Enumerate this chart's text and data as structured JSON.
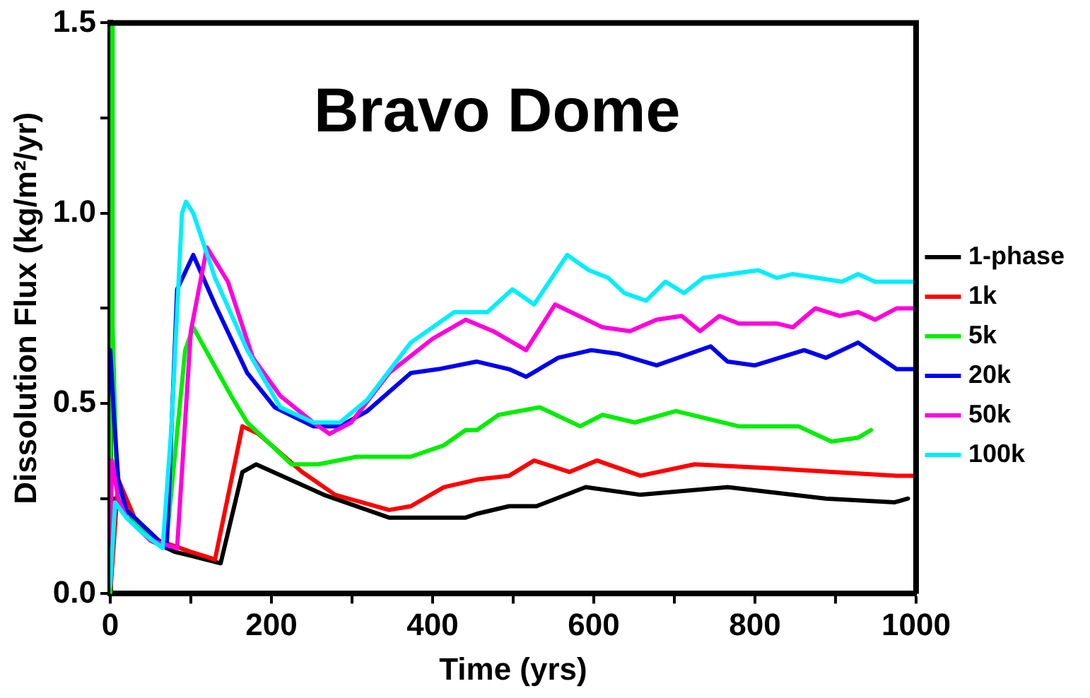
{
  "chart_data": {
    "type": "line",
    "title": "Bravo Dome",
    "xlabel": "Time (yrs)",
    "ylabel": "Dissolution Flux (kg/m²/yr)",
    "xlim": [
      0,
      1000
    ],
    "ylim": [
      0,
      1.5
    ],
    "xticks": [
      0,
      {
        "value": 100,
        "label": null
      },
      200,
      {
        "value": 300,
        "label": null
      },
      400,
      {
        "value": 500,
        "label": null
      },
      600,
      {
        "value": 700,
        "label": null
      },
      800,
      {
        "value": 900,
        "label": null
      },
      1000
    ],
    "yticks": [
      {
        "value": 0,
        "label": "0.0"
      },
      {
        "value": 0.25,
        "label": null
      },
      0.5,
      {
        "value": 0.75,
        "label": null
      },
      {
        "value": 1,
        "label": "1.0"
      },
      {
        "value": 1.25,
        "label": null
      },
      1.5
    ],
    "legend": "right",
    "grid": false,
    "marker": "none",
    "line_style": "solid",
    "series": [
      {
        "name": "1-phase",
        "color": "#000000",
        "x": [
          0,
          5,
          20,
          50,
          80,
          100,
          137,
          164,
          181,
          265,
          346,
          441,
          455,
          495,
          529,
          590,
          658,
          766,
          888,
          973,
          990
        ],
        "values": [
          0.0,
          0.25,
          0.22,
          0.14,
          0.11,
          0.1,
          0.08,
          0.32,
          0.34,
          0.26,
          0.2,
          0.2,
          0.21,
          0.23,
          0.23,
          0.28,
          0.26,
          0.28,
          0.25,
          0.24,
          0.25
        ]
      },
      {
        "name": "1k",
        "color": "#ff0000",
        "x": [
          0,
          10,
          30,
          60,
          100,
          130,
          164,
          184,
          238,
          279,
          346,
          373,
          414,
          455,
          495,
          526,
          570,
          604,
          658,
          725,
          820,
          895,
          976,
          1000
        ],
        "values": [
          0.0,
          0.3,
          0.2,
          0.14,
          0.11,
          0.09,
          0.44,
          0.42,
          0.32,
          0.26,
          0.22,
          0.23,
          0.28,
          0.3,
          0.31,
          0.35,
          0.32,
          0.35,
          0.31,
          0.34,
          0.33,
          0.32,
          0.31,
          0.31
        ]
      },
      {
        "name": "5k",
        "color": "#00ee00",
        "x": [
          0,
          2,
          3,
          8,
          20,
          40,
          69,
          93,
          103,
          150,
          170,
          225,
          258,
          306,
          373,
          414,
          441,
          455,
          482,
          533,
          583,
          611,
          651,
          702,
          780,
          854,
          895,
          928,
          944
        ],
        "values": [
          0.0,
          1.5,
          0.7,
          0.3,
          0.22,
          0.17,
          0.12,
          0.64,
          0.7,
          0.52,
          0.45,
          0.34,
          0.34,
          0.36,
          0.36,
          0.39,
          0.43,
          0.43,
          0.47,
          0.49,
          0.44,
          0.47,
          0.45,
          0.48,
          0.44,
          0.44,
          0.4,
          0.41,
          0.43
        ]
      },
      {
        "name": "20k",
        "color": "#0000ee",
        "x": [
          0,
          5,
          10,
          20,
          70,
          83,
          103,
          130,
          170,
          204,
          252,
          285,
          319,
          373,
          407,
          455,
          495,
          516,
          556,
          597,
          631,
          678,
          745,
          766,
          800,
          861,
          888,
          928,
          976,
          1000
        ],
        "values": [
          0.64,
          0.45,
          0.3,
          0.22,
          0.12,
          0.8,
          0.89,
          0.76,
          0.58,
          0.49,
          0.44,
          0.44,
          0.48,
          0.58,
          0.59,
          0.61,
          0.59,
          0.57,
          0.62,
          0.64,
          0.63,
          0.6,
          0.65,
          0.61,
          0.6,
          0.64,
          0.62,
          0.66,
          0.59,
          0.59
        ]
      },
      {
        "name": "50k",
        "color": "#ff00dd",
        "x": [
          0,
          2,
          10,
          20,
          50,
          83,
          100,
          120,
          146,
          177,
          211,
          252,
          272,
          299,
          346,
          400,
          441,
          475,
          516,
          552,
          611,
          645,
          678,
          709,
          732,
          756,
          780,
          827,
          847,
          875,
          905,
          928,
          949,
          976,
          1000
        ],
        "values": [
          0.1,
          0.35,
          0.25,
          0.2,
          0.14,
          0.12,
          0.69,
          0.91,
          0.82,
          0.62,
          0.52,
          0.45,
          0.42,
          0.45,
          0.58,
          0.67,
          0.72,
          0.69,
          0.64,
          0.76,
          0.7,
          0.69,
          0.72,
          0.73,
          0.69,
          0.73,
          0.71,
          0.71,
          0.7,
          0.75,
          0.73,
          0.74,
          0.72,
          0.75,
          0.75
        ]
      },
      {
        "name": "100k",
        "color": "#00eeff",
        "x": [
          0,
          6,
          20,
          40,
          65,
          76,
          89,
          94,
          103,
          130,
          170,
          211,
          252,
          285,
          319,
          373,
          427,
          468,
          499,
          526,
          567,
          594,
          618,
          638,
          665,
          689,
          712,
          736,
          804,
          827,
          847,
          908,
          928,
          949,
          976,
          1000
        ],
        "values": [
          0.02,
          0.24,
          0.2,
          0.16,
          0.12,
          0.44,
          1.0,
          1.03,
          1.0,
          0.83,
          0.64,
          0.49,
          0.45,
          0.45,
          0.51,
          0.66,
          0.74,
          0.74,
          0.8,
          0.76,
          0.89,
          0.85,
          0.83,
          0.79,
          0.77,
          0.82,
          0.79,
          0.83,
          0.85,
          0.83,
          0.84,
          0.82,
          0.84,
          0.82,
          0.82,
          0.82
        ]
      }
    ]
  }
}
